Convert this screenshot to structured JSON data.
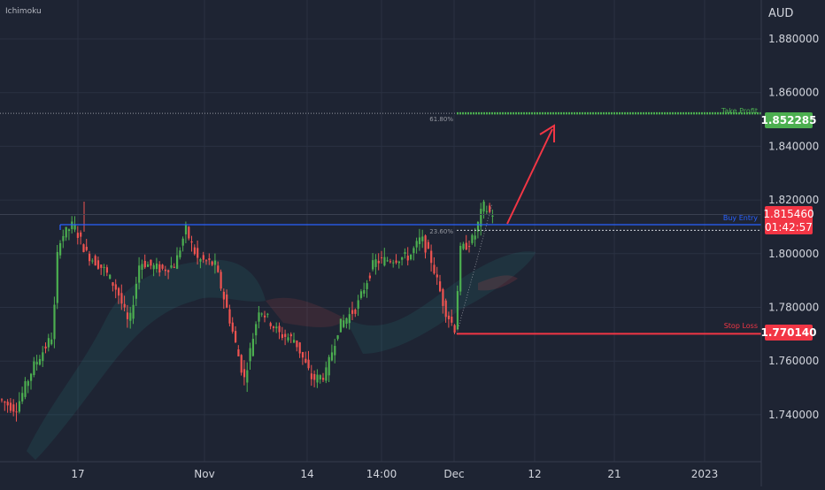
{
  "indicator_label": "Ichimoku",
  "currency": "AUD",
  "colors": {
    "background": "#1e2433",
    "up": "#26a69a",
    "up_body": "#4caf50",
    "down": "#ef5350",
    "green_level": "#4caf50",
    "red_level": "#f23645",
    "blue_level": "#2962ff",
    "axis_text": "#d1d4dc",
    "grid": "#2a3142"
  },
  "chart_data": {
    "type": "candlestick",
    "ylim": [
      1.7225,
      1.8945
    ],
    "y_ticks": [
      "1.880000",
      "1.860000",
      "1.840000",
      "1.820000",
      "1.800000",
      "1.780000",
      "1.760000",
      "1.740000"
    ],
    "y_tick_values": [
      1.88,
      1.86,
      1.84,
      1.82,
      1.8,
      1.78,
      1.76,
      1.74
    ],
    "x_ticks": [
      "17",
      "Nov",
      "14",
      "14:00",
      "Dec",
      "12",
      "21",
      "2023"
    ],
    "levels": {
      "take_profit": {
        "label": "Take Profit",
        "value": 1.852285,
        "price_label": "1.852285"
      },
      "buy_entry": {
        "label": "Buy Entry",
        "value": 1.8108
      },
      "stop_loss": {
        "label": "Stop Loss",
        "value": 1.77014,
        "price_label": "1.770140"
      }
    },
    "fibonacci": [
      {
        "label": "61.80%",
        "value": 1.8523
      },
      {
        "label": "23.60%",
        "value": 1.8087
      }
    ],
    "current_price": {
      "value": 1.81546,
      "label": "1.815460",
      "countdown": "01:42:57"
    },
    "annotation": "Upward arrow projecting from buy entry toward take profit"
  }
}
